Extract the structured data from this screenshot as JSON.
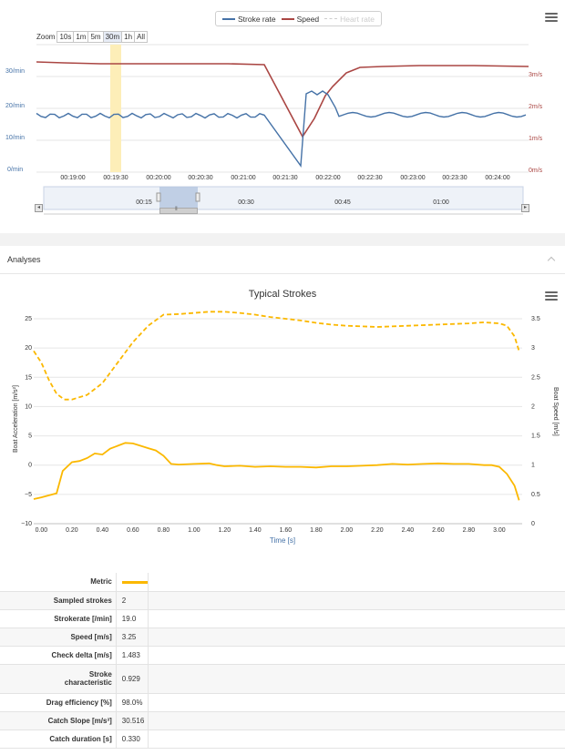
{
  "top_chart": {
    "legend": [
      {
        "label": "Stroke rate",
        "color": "#4572a7",
        "active": true
      },
      {
        "label": "Speed",
        "color": "#aa4643",
        "active": true
      },
      {
        "label": "Heart rate",
        "color": "#cccccc",
        "active": false
      }
    ],
    "zoom": {
      "label": "Zoom",
      "buttons": [
        "10s",
        "1m",
        "5m",
        "30m",
        "1h",
        "All"
      ],
      "selected": "30m"
    },
    "left_axis_labels": [
      "30/min",
      "20/min",
      "10/min",
      "0/min"
    ],
    "right_axis_labels": [
      "3m/s",
      "2m/s",
      "1m/s",
      "0m/s"
    ],
    "x_ticks": [
      "00:19:00",
      "00:19:30",
      "00:20:00",
      "00:20:30",
      "00:21:00",
      "00:21:30",
      "00:22:00",
      "00:22:30",
      "00:23:00",
      "00:23:30",
      "00:24:00"
    ],
    "navigator_ticks": [
      "00:15",
      "00:30",
      "00:45",
      "01:00"
    ],
    "scroll_left": "◂",
    "scroll_right": "▸",
    "scroll_grip": "⦀"
  },
  "analyses": {
    "title": "Analyses"
  },
  "strokes_chart": {
    "title": "Typical Strokes",
    "left_ticks": [
      "25",
      "20",
      "15",
      "10",
      "5",
      "0",
      "−5",
      "−10"
    ],
    "right_ticks": [
      "3.5",
      "3",
      "2.5",
      "2",
      "1.5",
      "1",
      "0.5",
      "0"
    ],
    "x_ticks": [
      "0.00",
      "0.20",
      "0.40",
      "0.60",
      "0.80",
      "1.00",
      "1.20",
      "1.40",
      "1.60",
      "1.80",
      "2.00",
      "2.20",
      "2.40",
      "2.60",
      "2.80",
      "3.00"
    ],
    "left_axis_title": "Boat Acceleration [m/s²]",
    "right_axis_title": "Boat Speed [m/s]",
    "x_axis_title": "Time [s]",
    "color": "#fbb800"
  },
  "chart_data": {
    "type": "line",
    "title": "Typical Strokes",
    "xlabel": "Time [s]",
    "ylabel": "Boat Acceleration [m/s²]",
    "y2label": "Boat Speed [m/s]",
    "xlim": [
      -0.05,
      3.15
    ],
    "ylim": [
      -10,
      25
    ],
    "y2lim": [
      0,
      3.5
    ],
    "series": [
      {
        "axis": "left",
        "style": "solid",
        "x": [
          -0.05,
          0.0,
          0.1,
          0.14,
          0.2,
          0.25,
          0.3,
          0.35,
          0.4,
          0.45,
          0.5,
          0.55,
          0.6,
          0.65,
          0.7,
          0.75,
          0.8,
          0.85,
          0.9,
          1.0,
          1.1,
          1.15,
          1.2,
          1.3,
          1.4,
          1.5,
          1.6,
          1.7,
          1.8,
          1.9,
          2.0,
          2.1,
          2.2,
          2.3,
          2.4,
          2.5,
          2.6,
          2.7,
          2.8,
          2.9,
          2.95,
          3.0,
          3.05,
          3.1,
          3.13
        ],
        "y": [
          -5.8,
          -5.5,
          -4.8,
          -1.0,
          0.5,
          0.7,
          1.2,
          2.0,
          1.8,
          2.8,
          3.3,
          3.8,
          3.7,
          3.3,
          2.9,
          2.5,
          1.6,
          0.2,
          0.1,
          0.2,
          0.3,
          0.0,
          -0.2,
          -0.1,
          -0.3,
          -0.2,
          -0.3,
          -0.3,
          -0.4,
          -0.2,
          -0.2,
          -0.1,
          0.0,
          0.2,
          0.1,
          0.2,
          0.3,
          0.2,
          0.2,
          0.0,
          0.0,
          -0.3,
          -1.5,
          -3.5,
          -6.0
        ]
      },
      {
        "axis": "right",
        "style": "dashed",
        "x": [
          -0.05,
          0.0,
          0.05,
          0.1,
          0.15,
          0.2,
          0.3,
          0.4,
          0.5,
          0.6,
          0.7,
          0.8,
          0.9,
          1.0,
          1.1,
          1.2,
          1.3,
          1.4,
          1.5,
          1.6,
          1.7,
          1.8,
          1.9,
          2.0,
          2.2,
          2.4,
          2.6,
          2.8,
          2.9,
          3.0,
          3.05,
          3.1,
          3.13
        ],
        "y": [
          2.95,
          2.75,
          2.45,
          2.22,
          2.12,
          2.12,
          2.2,
          2.4,
          2.75,
          3.1,
          3.38,
          3.57,
          3.58,
          3.6,
          3.62,
          3.62,
          3.6,
          3.57,
          3.53,
          3.5,
          3.47,
          3.43,
          3.4,
          3.38,
          3.36,
          3.38,
          3.4,
          3.42,
          3.44,
          3.42,
          3.38,
          3.2,
          2.95
        ]
      }
    ]
  },
  "metrics_table": {
    "header": {
      "label": "Metric",
      "swatch_color": "#fbb800"
    },
    "rows": [
      {
        "label": "Sampled strokes",
        "value": "2"
      },
      {
        "label": "Strokerate [/min]",
        "value": "19.0"
      },
      {
        "label": "Speed [m/s]",
        "value": "3.25"
      },
      {
        "label": "Check delta [m/s]",
        "value": "1.483"
      },
      {
        "label": "Stroke characteristic",
        "value": "0.929"
      },
      {
        "label": "Drag efficiency [%]",
        "value": "98.0%"
      },
      {
        "label": "Catch Slope [m/s³]",
        "value": "30.516"
      },
      {
        "label": "Catch duration [s]",
        "value": "0.330"
      }
    ]
  }
}
